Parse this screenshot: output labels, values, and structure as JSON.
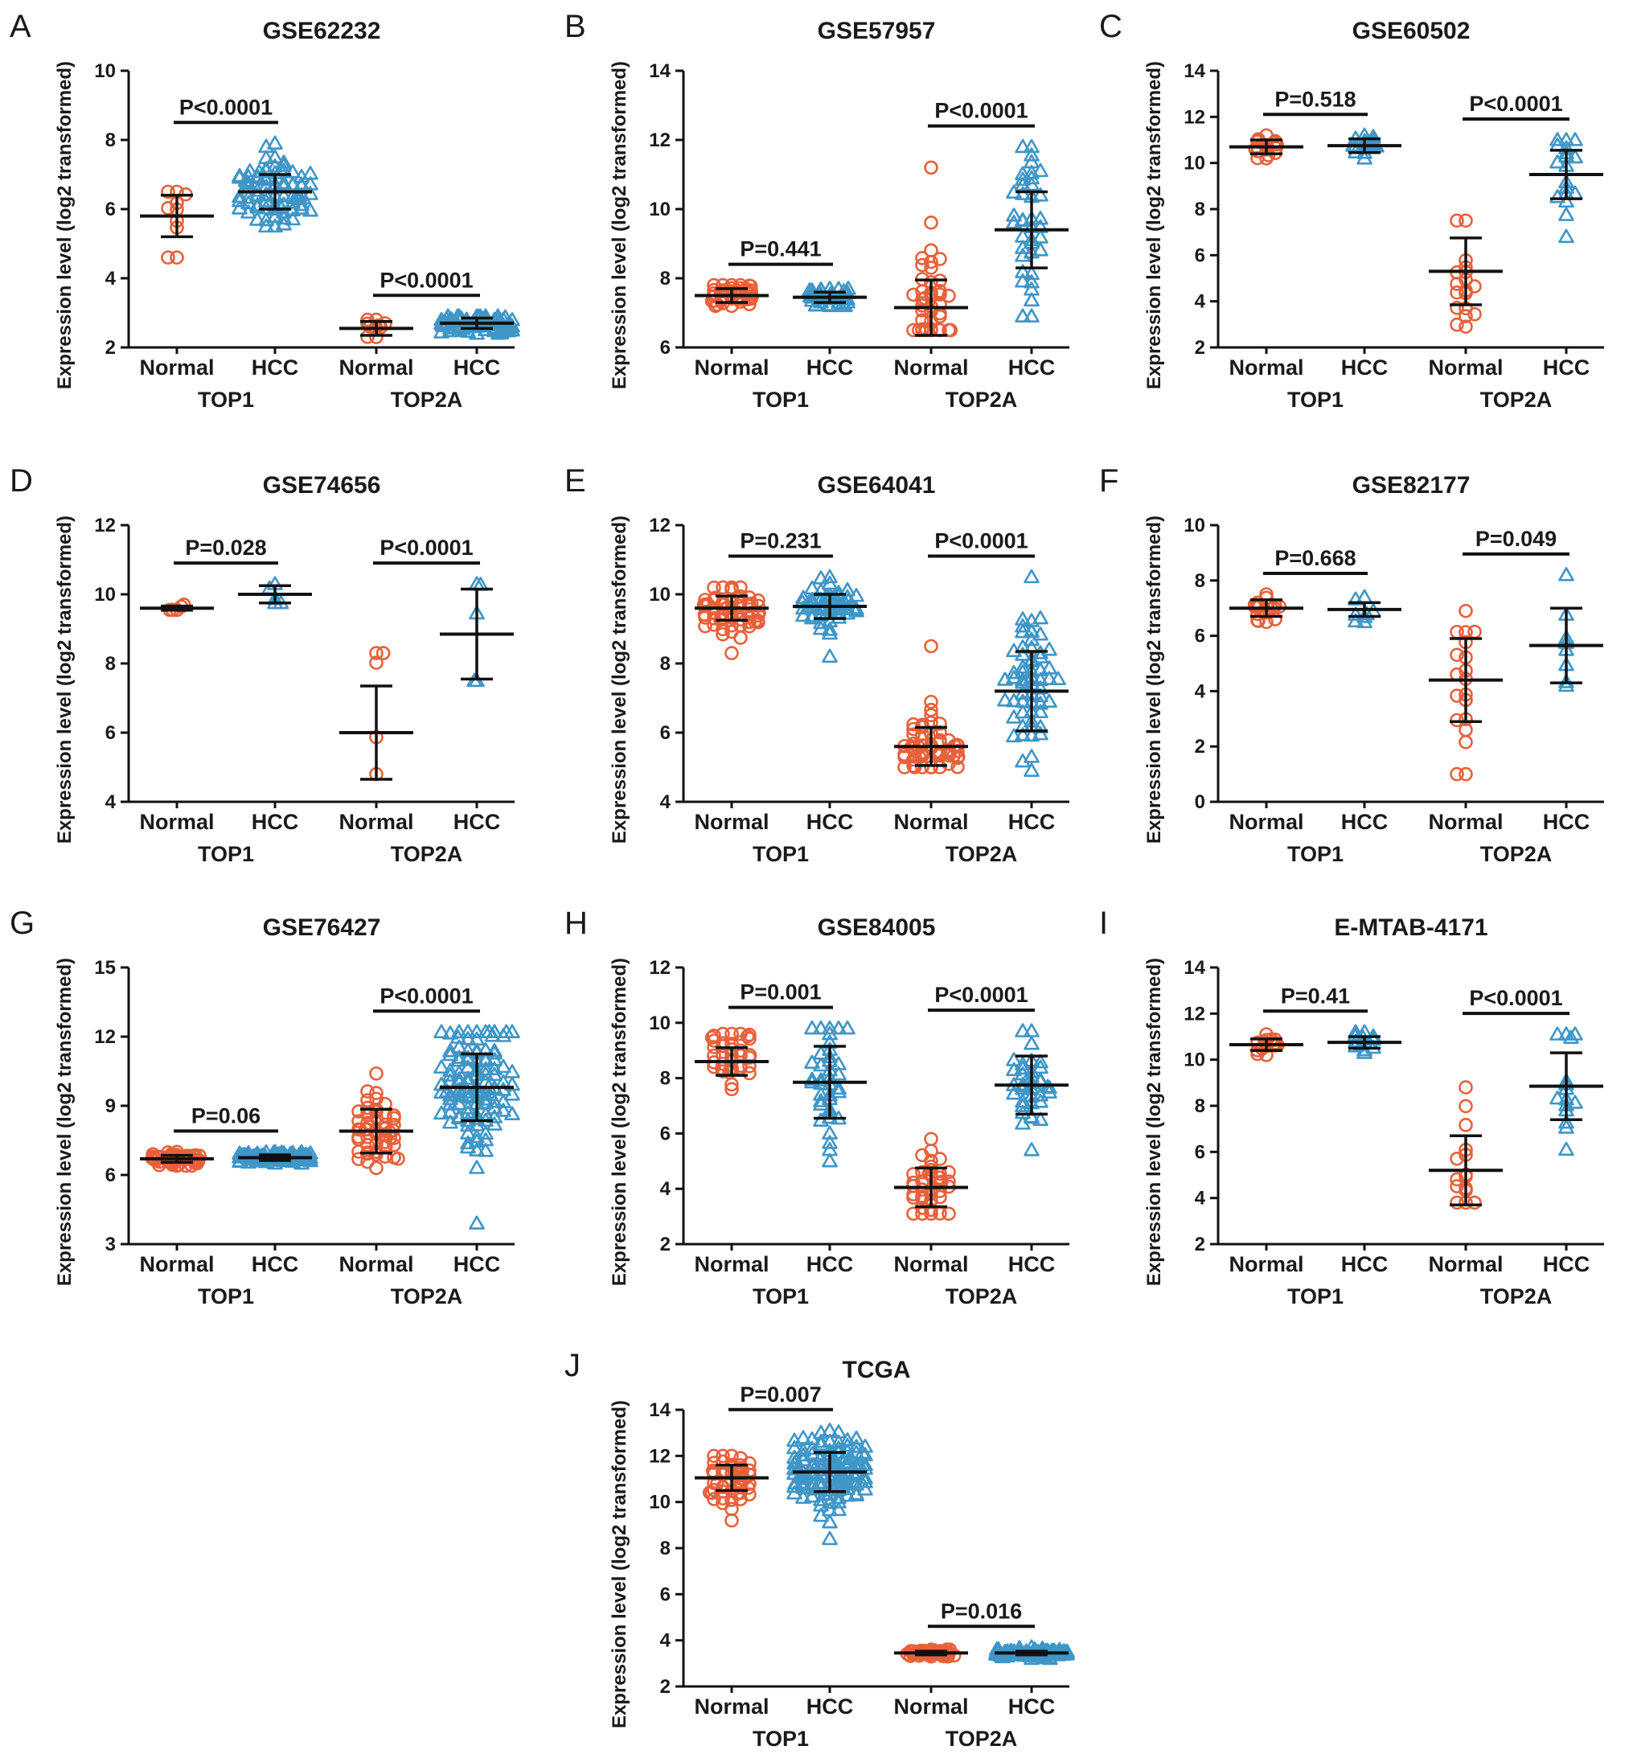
{
  "figure": {
    "colors": {
      "normal": "#E8603A",
      "hcc": "#3F96C7",
      "ink": "#111111"
    },
    "marker_shapes": {
      "normal": "circle",
      "hcc": "triangle"
    }
  },
  "chart_data": [
    {
      "type": "scatter",
      "letter": "A",
      "title": "GSE62232",
      "ylabel": "Expression level (log2 transformed)",
      "ylim": [
        2,
        10
      ],
      "yticks": [
        2,
        4,
        6,
        8,
        10
      ],
      "genes": [
        "TOP1",
        "TOP2A"
      ],
      "categories": [
        "Normal",
        "HCC",
        "Normal",
        "HCC"
      ],
      "groups": [
        {
          "gene": "TOP1",
          "label": "Normal",
          "n": 10,
          "mean": 5.8,
          "sd": 0.6,
          "min": 4.6,
          "max": 6.5
        },
        {
          "gene": "TOP1",
          "label": "HCC",
          "n": 81,
          "mean": 6.5,
          "sd": 0.5,
          "min": 5.5,
          "max": 7.9
        },
        {
          "gene": "TOP2A",
          "label": "Normal",
          "n": 10,
          "mean": 2.55,
          "sd": 0.2,
          "min": 2.3,
          "max": 2.8
        },
        {
          "gene": "TOP2A",
          "label": "HCC",
          "n": 81,
          "mean": 2.7,
          "sd": 0.15,
          "min": 2.4,
          "max": 2.9
        }
      ],
      "comparisons": [
        {
          "gene": "TOP1",
          "p": "P<0.0001"
        },
        {
          "gene": "TOP2A",
          "p": "P<0.0001"
        }
      ]
    },
    {
      "type": "scatter",
      "letter": "B",
      "title": "GSE57957",
      "ylabel": "Expression level (log2 transformed)",
      "ylim": [
        6,
        14
      ],
      "yticks": [
        6,
        8,
        10,
        12,
        14
      ],
      "genes": [
        "TOP1",
        "TOP2A"
      ],
      "categories": [
        "Normal",
        "HCC",
        "Normal",
        "HCC"
      ],
      "groups": [
        {
          "gene": "TOP1",
          "label": "Normal",
          "n": 39,
          "mean": 7.5,
          "sd": 0.2,
          "min": 7.2,
          "max": 7.8
        },
        {
          "gene": "TOP1",
          "label": "HCC",
          "n": 39,
          "mean": 7.45,
          "sd": 0.15,
          "min": 7.2,
          "max": 7.7
        },
        {
          "gene": "TOP2A",
          "label": "Normal",
          "n": 39,
          "mean": 7.15,
          "sd": 0.8,
          "min": 6.5,
          "max": 11.2
        },
        {
          "gene": "TOP2A",
          "label": "HCC",
          "n": 39,
          "mean": 9.4,
          "sd": 1.1,
          "min": 6.9,
          "max": 11.8
        }
      ],
      "comparisons": [
        {
          "gene": "TOP1",
          "p": "P=0.441"
        },
        {
          "gene": "TOP2A",
          "p": "P<0.0001"
        }
      ]
    },
    {
      "type": "scatter",
      "letter": "C",
      "title": "GSE60502",
      "ylabel": "Expression level (log2 transformed)",
      "ylim": [
        2,
        14
      ],
      "yticks": [
        2,
        4,
        6,
        8,
        10,
        12,
        14
      ],
      "genes": [
        "TOP1",
        "TOP2A"
      ],
      "categories": [
        "Normal",
        "HCC",
        "Normal",
        "HCC"
      ],
      "groups": [
        {
          "gene": "TOP1",
          "label": "Normal",
          "n": 18,
          "mean": 10.7,
          "sd": 0.3,
          "min": 10.2,
          "max": 11.2
        },
        {
          "gene": "TOP1",
          "label": "HCC",
          "n": 18,
          "mean": 10.75,
          "sd": 0.3,
          "min": 10.2,
          "max": 11.2
        },
        {
          "gene": "TOP2A",
          "label": "Normal",
          "n": 18,
          "mean": 5.3,
          "sd": 1.45,
          "min": 2.9,
          "max": 7.5
        },
        {
          "gene": "TOP2A",
          "label": "HCC",
          "n": 18,
          "mean": 9.5,
          "sd": 1.05,
          "min": 6.8,
          "max": 11.0
        }
      ],
      "comparisons": [
        {
          "gene": "TOP1",
          "p": "P=0.518"
        },
        {
          "gene": "TOP2A",
          "p": "P<0.0001"
        }
      ]
    },
    {
      "type": "scatter",
      "letter": "D",
      "title": "GSE74656",
      "ylabel": "Expression level (log2 transformed)",
      "ylim": [
        4,
        12
      ],
      "yticks": [
        4,
        6,
        8,
        10,
        12
      ],
      "genes": [
        "TOP1",
        "TOP2A"
      ],
      "categories": [
        "Normal",
        "HCC",
        "Normal",
        "HCC"
      ],
      "groups": [
        {
          "gene": "TOP1",
          "label": "Normal",
          "n": 5,
          "mean": 9.6,
          "sd": 0.06,
          "min": 9.55,
          "max": 9.7
        },
        {
          "gene": "TOP1",
          "label": "HCC",
          "n": 5,
          "mean": 10.0,
          "sd": 0.25,
          "min": 9.75,
          "max": 10.3
        },
        {
          "gene": "TOP2A",
          "label": "Normal",
          "n": 5,
          "mean": 6.0,
          "sd": 1.35,
          "min": 4.8,
          "max": 8.3
        },
        {
          "gene": "TOP2A",
          "label": "HCC",
          "n": 5,
          "mean": 8.85,
          "sd": 1.3,
          "min": 7.5,
          "max": 10.3
        }
      ],
      "comparisons": [
        {
          "gene": "TOP1",
          "p": "P=0.028"
        },
        {
          "gene": "TOP2A",
          "p": "P<0.0001"
        }
      ]
    },
    {
      "type": "scatter",
      "letter": "E",
      "title": "GSE64041",
      "ylabel": "Expression level (log2 transformed)",
      "ylim": [
        4,
        12
      ],
      "yticks": [
        4,
        6,
        8,
        10,
        12
      ],
      "genes": [
        "TOP1",
        "TOP2A"
      ],
      "categories": [
        "Normal",
        "HCC",
        "Normal",
        "HCC"
      ],
      "groups": [
        {
          "gene": "TOP1",
          "label": "Normal",
          "n": 60,
          "mean": 9.6,
          "sd": 0.35,
          "min": 8.3,
          "max": 10.2
        },
        {
          "gene": "TOP1",
          "label": "HCC",
          "n": 60,
          "mean": 9.65,
          "sd": 0.35,
          "min": 8.2,
          "max": 10.5
        },
        {
          "gene": "TOP2A",
          "label": "Normal",
          "n": 60,
          "mean": 5.6,
          "sd": 0.55,
          "min": 5.0,
          "max": 8.5
        },
        {
          "gene": "TOP2A",
          "label": "HCC",
          "n": 60,
          "mean": 7.2,
          "sd": 1.15,
          "min": 4.9,
          "max": 10.5
        }
      ],
      "comparisons": [
        {
          "gene": "TOP1",
          "p": "P=0.231"
        },
        {
          "gene": "TOP2A",
          "p": "P<0.0001"
        }
      ]
    },
    {
      "type": "scatter",
      "letter": "F",
      "title": "GSE82177",
      "ylabel": "Expression level (log2 transformed)",
      "ylim": [
        0,
        10
      ],
      "yticks": [
        0,
        2,
        4,
        6,
        8,
        10
      ],
      "genes": [
        "TOP1",
        "TOP2A"
      ],
      "categories": [
        "Normal",
        "HCC",
        "Normal",
        "HCC"
      ],
      "groups": [
        {
          "gene": "TOP1",
          "label": "Normal",
          "n": 19,
          "mean": 7.0,
          "sd": 0.3,
          "min": 6.5,
          "max": 7.5
        },
        {
          "gene": "TOP1",
          "label": "HCC",
          "n": 8,
          "mean": 6.95,
          "sd": 0.25,
          "min": 6.5,
          "max": 7.4
        },
        {
          "gene": "TOP2A",
          "label": "Normal",
          "n": 19,
          "mean": 4.4,
          "sd": 1.5,
          "min": 1.0,
          "max": 6.9
        },
        {
          "gene": "TOP2A",
          "label": "HCC",
          "n": 8,
          "mean": 5.65,
          "sd": 1.35,
          "min": 4.2,
          "max": 8.2
        }
      ],
      "comparisons": [
        {
          "gene": "TOP1",
          "p": "P=0.668"
        },
        {
          "gene": "TOP2A",
          "p": "P=0.049"
        }
      ]
    },
    {
      "type": "scatter",
      "letter": "G",
      "title": "GSE76427",
      "ylabel": "Expression level (log2 transformed)",
      "ylim": [
        3,
        15
      ],
      "yticks": [
        3,
        6,
        9,
        12,
        15
      ],
      "genes": [
        "TOP1",
        "TOP2A"
      ],
      "categories": [
        "Normal",
        "HCC",
        "Normal",
        "HCC"
      ],
      "groups": [
        {
          "gene": "TOP1",
          "label": "Normal",
          "n": 52,
          "mean": 6.7,
          "sd": 0.15,
          "min": 6.4,
          "max": 7.0
        },
        {
          "gene": "TOP1",
          "label": "HCC",
          "n": 115,
          "mean": 6.75,
          "sd": 0.12,
          "min": 6.5,
          "max": 7.0
        },
        {
          "gene": "TOP2A",
          "label": "Normal",
          "n": 52,
          "mean": 7.9,
          "sd": 0.95,
          "min": 6.3,
          "max": 10.4
        },
        {
          "gene": "TOP2A",
          "label": "HCC",
          "n": 115,
          "mean": 9.8,
          "sd": 1.45,
          "min": 3.9,
          "max": 12.2
        }
      ],
      "comparisons": [
        {
          "gene": "TOP1",
          "p": "P=0.06"
        },
        {
          "gene": "TOP2A",
          "p": "P<0.0001"
        }
      ]
    },
    {
      "type": "scatter",
      "letter": "H",
      "title": "GSE84005",
      "ylabel": "Expression level (log2 transformed)",
      "ylim": [
        2,
        12
      ],
      "yticks": [
        2,
        4,
        6,
        8,
        10,
        12
      ],
      "genes": [
        "TOP1",
        "TOP2A"
      ],
      "categories": [
        "Normal",
        "HCC",
        "Normal",
        "HCC"
      ],
      "groups": [
        {
          "gene": "TOP1",
          "label": "Normal",
          "n": 38,
          "mean": 8.6,
          "sd": 0.5,
          "min": 7.6,
          "max": 9.6
        },
        {
          "gene": "TOP1",
          "label": "HCC",
          "n": 38,
          "mean": 7.85,
          "sd": 1.3,
          "min": 5.0,
          "max": 9.8
        },
        {
          "gene": "TOP2A",
          "label": "Normal",
          "n": 38,
          "mean": 4.05,
          "sd": 0.7,
          "min": 3.1,
          "max": 5.8
        },
        {
          "gene": "TOP2A",
          "label": "HCC",
          "n": 38,
          "mean": 7.75,
          "sd": 1.05,
          "min": 5.4,
          "max": 9.7
        }
      ],
      "comparisons": [
        {
          "gene": "TOP1",
          "p": "P=0.001"
        },
        {
          "gene": "TOP2A",
          "p": "P<0.0001"
        }
      ]
    },
    {
      "type": "scatter",
      "letter": "I",
      "title": "E-MTAB-4171",
      "ylabel": "Expression level (log2 transformed)",
      "ylim": [
        2,
        14
      ],
      "yticks": [
        2,
        4,
        6,
        8,
        10,
        12,
        14
      ],
      "genes": [
        "TOP1",
        "TOP2A"
      ],
      "categories": [
        "Normal",
        "HCC",
        "Normal",
        "HCC"
      ],
      "groups": [
        {
          "gene": "TOP1",
          "label": "Normal",
          "n": 15,
          "mean": 10.65,
          "sd": 0.25,
          "min": 10.2,
          "max": 11.1
        },
        {
          "gene": "TOP1",
          "label": "HCC",
          "n": 15,
          "mean": 10.75,
          "sd": 0.25,
          "min": 10.3,
          "max": 11.2
        },
        {
          "gene": "TOP2A",
          "label": "Normal",
          "n": 15,
          "mean": 5.2,
          "sd": 1.5,
          "min": 3.8,
          "max": 8.8
        },
        {
          "gene": "TOP2A",
          "label": "HCC",
          "n": 15,
          "mean": 8.85,
          "sd": 1.45,
          "min": 6.1,
          "max": 11.1
        }
      ],
      "comparisons": [
        {
          "gene": "TOP1",
          "p": "P=0.41"
        },
        {
          "gene": "TOP2A",
          "p": "P<0.0001"
        }
      ]
    },
    {
      "type": "scatter",
      "letter": "J",
      "title": "TCGA",
      "ylabel": "Expression level (log2 transformed)",
      "ylim": [
        2,
        14
      ],
      "yticks": [
        2,
        4,
        6,
        8,
        10,
        12,
        14
      ],
      "genes": [
        "TOP1",
        "TOP2A"
      ],
      "categories": [
        "Normal",
        "HCC",
        "Normal",
        "HCC"
      ],
      "groups": [
        {
          "gene": "TOP1",
          "label": "Normal",
          "n": 50,
          "mean": 11.05,
          "sd": 0.55,
          "min": 9.2,
          "max": 12.0
        },
        {
          "gene": "TOP1",
          "label": "HCC",
          "n": 130,
          "mean": 11.3,
          "sd": 0.85,
          "min": 8.4,
          "max": 13.1
        },
        {
          "gene": "TOP2A",
          "label": "Normal",
          "n": 50,
          "mean": 3.45,
          "sd": 0.08,
          "min": 3.3,
          "max": 3.6
        },
        {
          "gene": "TOP2A",
          "label": "HCC",
          "n": 130,
          "mean": 3.45,
          "sd": 0.08,
          "min": 3.2,
          "max": 3.7
        }
      ],
      "comparisons": [
        {
          "gene": "TOP1",
          "p": "P=0.007"
        },
        {
          "gene": "TOP2A",
          "p": "P=0.016"
        }
      ]
    }
  ]
}
